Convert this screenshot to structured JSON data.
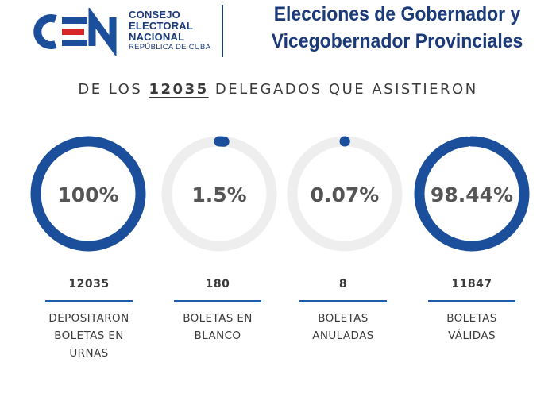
{
  "header": {
    "logo_text": "CEN",
    "org_lines": [
      "CONSEJO",
      "ELECTORAL",
      "NACIONAL"
    ],
    "org_sub": "REPÚBLICA DE CUBA",
    "title_line1": "Elecciones de Gobernador y",
    "title_line2": "Vicegobernador Provinciales"
  },
  "headline": {
    "prefix": "DE LOS",
    "total": "12035",
    "suffix": "DELEGADOS QUE ASISTIERON"
  },
  "colors": {
    "accent": "#1b4e9b",
    "track": "#eeeeee",
    "text": "#3a3a3a",
    "percent_text": "#555555"
  },
  "chart_data": {
    "type": "radial-gauge",
    "total": 12035,
    "items": [
      {
        "percent_label": "100%",
        "value": 100,
        "count": "12035",
        "label_lines": [
          "DEPOSITARON",
          "BOLETAS EN",
          "URNAS"
        ]
      },
      {
        "percent_label": "1.5%",
        "value": 1.5,
        "count": "180",
        "label_lines": [
          "BOLETAS EN",
          "BLANCO"
        ]
      },
      {
        "percent_label": "0.07%",
        "value": 0.07,
        "count": "8",
        "label_lines": [
          "BOLETAS",
          "ANULADAS"
        ]
      },
      {
        "percent_label": "98.44%",
        "value": 98.44,
        "count": "11847",
        "label_lines": [
          "BOLETAS",
          "VÁLIDAS"
        ]
      }
    ]
  }
}
